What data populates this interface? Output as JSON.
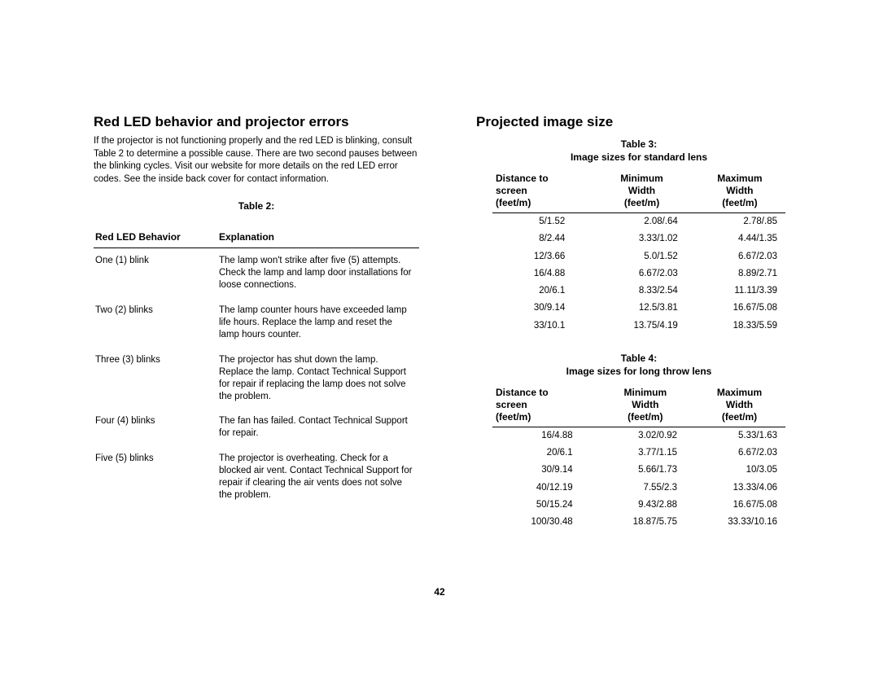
{
  "pageNumber": "42",
  "left": {
    "heading": "Red LED behavior and projector errors",
    "intro": "If the projector is not functioning properly and the red LED is blinking, consult Table 2 to determine a possible cause. There are two second pauses between the blinking cycles. Visit our website for more details on the red LED error codes. See the inside back cover for contact information.",
    "tableLabel": "Table 2:",
    "col1": "Red LED Behavior",
    "col2": "Explanation",
    "rows": [
      {
        "b": "One (1) blink",
        "e": "The lamp won't strike after five (5) attempts. Check the lamp and lamp door installations for loose connections."
      },
      {
        "b": "Two (2) blinks",
        "e": "The lamp counter hours have exceeded lamp life hours. Replace the lamp and reset the lamp hours counter."
      },
      {
        "b": "Three (3) blinks",
        "e": "The projector has shut down the lamp. Replace the lamp. Contact Technical Support for repair if replacing the lamp does not solve the problem."
      },
      {
        "b": "Four (4) blinks",
        "e": "The fan has failed. Contact Technical Support for repair."
      },
      {
        "b": "Five (5) blinks",
        "e": "The projector is overheating. Check for a blocked air vent. Contact Technical Support for repair if clearing the air vents does not solve the problem."
      }
    ]
  },
  "right": {
    "heading": "Projected image size",
    "table3": {
      "label": "Table 3:",
      "caption": "Image sizes for standard lens",
      "h1a": "Distance to",
      "h1b": "screen",
      "h1c": "(feet/m)",
      "h2a": "Minimum",
      "h2b": "Width",
      "h2c": "(feet/m)",
      "h3a": "Maximum",
      "h3b": "Width",
      "h3c": "(feet/m)",
      "rows": [
        {
          "d": "5/1.52",
          "min": "2.08/.64",
          "max": "2.78/.85"
        },
        {
          "d": "8/2.44",
          "min": "3.33/1.02",
          "max": "4.44/1.35"
        },
        {
          "d": "12/3.66",
          "min": "5.0/1.52",
          "max": "6.67/2.03"
        },
        {
          "d": "16/4.88",
          "min": "6.67/2.03",
          "max": "8.89/2.71"
        },
        {
          "d": "20/6.1",
          "min": "8.33/2.54",
          "max": "11.11/3.39"
        },
        {
          "d": "30/9.14",
          "min": "12.5/3.81",
          "max": "16.67/5.08"
        },
        {
          "d": "33/10.1",
          "min": "13.75/4.19",
          "max": "18.33/5.59"
        }
      ]
    },
    "table4": {
      "label": "Table 4:",
      "caption": "Image sizes for long throw lens",
      "h1a": "Distance to",
      "h1b": "screen",
      "h1c": "(feet/m)",
      "h2a": "Minimum",
      "h2b": "Width",
      "h2c": "(feet/m)",
      "h3a": "Maximum",
      "h3b": "Width",
      "h3c": "(feet/m)",
      "rows": [
        {
          "d": "16/4.88",
          "min": "3.02/0.92",
          "max": "5.33/1.63"
        },
        {
          "d": "20/6.1",
          "min": "3.77/1.15",
          "max": "6.67/2.03"
        },
        {
          "d": "30/9.14",
          "min": "5.66/1.73",
          "max": "10/3.05"
        },
        {
          "d": "40/12.19",
          "min": "7.55/2.3",
          "max": "13.33/4.06"
        },
        {
          "d": "50/15.24",
          "min": "9.43/2.88",
          "max": "16.67/5.08"
        },
        {
          "d": "100/30.48",
          "min": "18.87/5.75",
          "max": "33.33/10.16"
        }
      ]
    }
  }
}
